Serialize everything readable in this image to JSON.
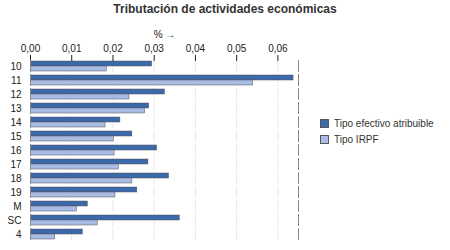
{
  "chart_data": {
    "type": "bar",
    "title": "Tributación de actividades económicas",
    "orientation": "horizontal",
    "x_label": "%",
    "categories": [
      "10",
      "11",
      "12",
      "13",
      "14",
      "15",
      "16",
      "17",
      "18",
      "19",
      "M",
      "SC",
      "4"
    ],
    "series": [
      {
        "name": "Tipo efectivo atribuible",
        "color": "#3b69a9",
        "values": [
          0.0295,
          0.0638,
          0.0326,
          0.0288,
          0.0218,
          0.0247,
          0.0307,
          0.0286,
          0.0336,
          0.0259,
          0.0139,
          0.0362,
          0.0127
        ]
      },
      {
        "name": "Tipo IRPF",
        "color": "#a9bce6",
        "values": [
          0.0185,
          0.054,
          0.024,
          0.0278,
          0.0182,
          0.0202,
          0.0204,
          0.0214,
          0.0247,
          0.0206,
          0.0113,
          0.0163,
          0.006
        ]
      }
    ],
    "xlim": [
      0,
      0.065
    ],
    "xticks": [
      {
        "value": 0,
        "label": "0,00"
      },
      {
        "value": 0.01,
        "label": "0,01"
      },
      {
        "value": 0.02,
        "label": "0,02"
      },
      {
        "value": 0.03,
        "label": "0,03"
      },
      {
        "value": 0.04,
        "label": "0,04"
      },
      {
        "value": 0.05,
        "label": "0,05"
      },
      {
        "value": 0.06,
        "label": "0,06"
      }
    ],
    "grid": true,
    "legend": "right"
  }
}
